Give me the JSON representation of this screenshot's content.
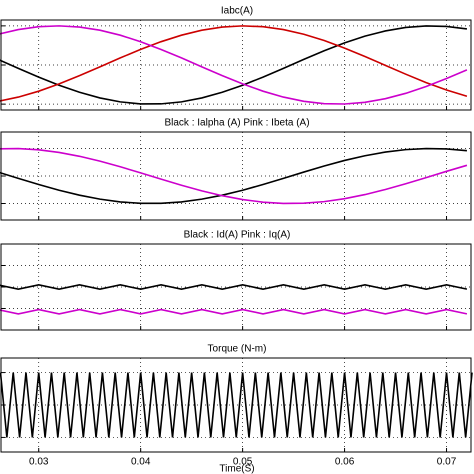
{
  "chart_data": [
    {
      "type": "line",
      "title": "Iabc(A)",
      "x": [
        0.026,
        0.028,
        0.03,
        0.032,
        0.034,
        0.036,
        0.038,
        0.04,
        0.042,
        0.044,
        0.046,
        0.048,
        0.05,
        0.052,
        0.054,
        0.056,
        0.058,
        0.06,
        0.062,
        0.064,
        0.066,
        0.068,
        0.07,
        0.072
      ],
      "series": [
        {
          "color": "#000000",
          "values": [
            0.143,
            -0.085,
            -0.309,
            -0.517,
            -0.697,
            -0.841,
            -0.942,
            -0.994,
            -0.993,
            -0.942,
            -0.841,
            -0.697,
            -0.517,
            -0.309,
            -0.085,
            0.143,
            0.363,
            0.565,
            0.737,
            0.871,
            0.959,
            0.998,
            0.985,
            0.921
          ]
        },
        {
          "color": "#cc0000",
          "values": [
            -0.928,
            -0.82,
            -0.669,
            -0.483,
            -0.272,
            -0.047,
            0.181,
            0.399,
            0.596,
            0.762,
            0.889,
            0.969,
            1.0,
            0.978,
            0.906,
            0.786,
            0.625,
            0.432,
            0.216,
            -0.01,
            -0.235,
            -0.45,
            -0.64,
            -0.798
          ]
        },
        {
          "color": "#cc00cc",
          "values": [
            0.786,
            0.906,
            0.978,
            1.0,
            0.969,
            0.889,
            0.762,
            0.595,
            0.397,
            0.181,
            -0.047,
            -0.272,
            -0.483,
            -0.669,
            -0.82,
            -0.928,
            -0.988,
            -0.997,
            -0.954,
            -0.861,
            -0.724,
            -0.549,
            -0.345,
            -0.124
          ]
        }
      ],
      "xlim": [
        0.0263,
        0.0724
      ],
      "ylim": [
        -1.15,
        1.15
      ],
      "yticks": [
        -1,
        0,
        1
      ],
      "grid": true
    },
    {
      "type": "line",
      "title": "Black : Ialpha (A)  Pink : Ibeta (A)",
      "x": [
        0.026,
        0.028,
        0.03,
        0.032,
        0.034,
        0.036,
        0.038,
        0.04,
        0.042,
        0.044,
        0.046,
        0.048,
        0.05,
        0.052,
        0.054,
        0.056,
        0.058,
        0.06,
        0.062,
        0.064,
        0.066,
        0.068,
        0.07,
        0.072
      ],
      "series": [
        {
          "color": "#000000",
          "values": [
            0.143,
            -0.085,
            -0.309,
            -0.517,
            -0.697,
            -0.841,
            -0.942,
            -0.994,
            -0.993,
            -0.942,
            -0.841,
            -0.697,
            -0.517,
            -0.309,
            -0.085,
            0.143,
            0.363,
            0.565,
            0.737,
            0.871,
            0.959,
            0.998,
            0.985,
            0.921
          ]
        },
        {
          "color": "#cc00cc",
          "values": [
            0.99,
            0.996,
            0.951,
            0.856,
            0.717,
            0.54,
            0.335,
            0.113,
            -0.115,
            -0.335,
            -0.54,
            -0.717,
            -0.856,
            -0.951,
            -0.996,
            -0.99,
            -0.932,
            -0.825,
            -0.676,
            -0.491,
            -0.282,
            -0.058,
            0.17,
            0.389
          ]
        }
      ],
      "xlim": [
        0.0263,
        0.0724
      ],
      "ylim": [
        -1.6,
        1.6
      ],
      "yticks": [
        -1,
        0,
        1
      ],
      "grid": true
    },
    {
      "type": "line",
      "title": "Black : Id(A) Pink : Iq(A)",
      "x": [
        0.026,
        0.028,
        0.03,
        0.032,
        0.034,
        0.036,
        0.038,
        0.04,
        0.042,
        0.044,
        0.046,
        0.048,
        0.05,
        0.052,
        0.054,
        0.056,
        0.058,
        0.06,
        0.062,
        0.064,
        0.066,
        0.068,
        0.07,
        0.072
      ],
      "series": [
        {
          "color": "#000000",
          "values": [
            0.1,
            -0.1,
            0.1,
            -0.1,
            0.1,
            -0.1,
            0.1,
            -0.1,
            0.1,
            -0.1,
            0.1,
            -0.1,
            0.1,
            -0.1,
            0.1,
            -0.1,
            0.1,
            -0.1,
            0.1,
            -0.1,
            0.1,
            -0.1,
            0.1,
            -0.1
          ]
        },
        {
          "color": "#cc00cc",
          "values": [
            -1.05,
            -1.25,
            -1.05,
            -1.25,
            -1.05,
            -1.25,
            -1.05,
            -1.25,
            -1.05,
            -1.25,
            -1.05,
            -1.25,
            -1.05,
            -1.25,
            -1.05,
            -1.25,
            -1.05,
            -1.25,
            -1.05,
            -1.25,
            -1.05,
            -1.25,
            -1.05,
            -1.25
          ]
        }
      ],
      "xlim": [
        0.0263,
        0.0724
      ],
      "ylim": [
        -2,
        2
      ],
      "yticks": [
        -1,
        0,
        1
      ],
      "grid": true
    },
    {
      "type": "line",
      "title": "Torque (N-m)",
      "xlabel": "Time(S)",
      "x": [
        0.02625,
        0.026875,
        0.0275,
        0.028125,
        0.02875,
        0.029375,
        0.03,
        0.030625,
        0.03125,
        0.031875,
        0.0325,
        0.033125,
        0.03375,
        0.034375,
        0.035,
        0.035625,
        0.03625,
        0.036875,
        0.0375,
        0.038125,
        0.03875,
        0.039375,
        0.04,
        0.040625,
        0.04125,
        0.041875,
        0.0425,
        0.043125,
        0.04375,
        0.044375,
        0.045,
        0.045625,
        0.04625,
        0.046875,
        0.0475,
        0.048125,
        0.04875,
        0.049375,
        0.05,
        0.050625,
        0.05125,
        0.051875,
        0.0525,
        0.053125,
        0.05375,
        0.054375,
        0.055,
        0.055625,
        0.05625,
        0.056875,
        0.0575,
        0.058125,
        0.05875,
        0.059375,
        0.06,
        0.060625,
        0.06125,
        0.061875,
        0.0625,
        0.063125,
        0.06375,
        0.064375,
        0.065,
        0.065625,
        0.06625,
        0.066875,
        0.0675,
        0.068125,
        0.06875,
        0.069375,
        0.07,
        0.070625,
        0.07125,
        0.071875,
        0.0725
      ],
      "series": [
        {
          "color": "#000000",
          "values": [
            1,
            -1,
            1,
            -1,
            1,
            -1,
            1,
            -1,
            1,
            -1,
            1,
            -1,
            1,
            -1,
            1,
            -1,
            1,
            -1,
            1,
            -1,
            1,
            -1,
            1,
            -1,
            1,
            -1,
            1,
            -1,
            1,
            -1,
            1,
            -1,
            1,
            -1,
            1,
            -1,
            1,
            -1,
            1,
            -1,
            1,
            -1,
            1,
            -1,
            1,
            -1,
            1,
            -1,
            1,
            -1,
            1,
            -1,
            1,
            -1,
            1,
            -1,
            1,
            -1,
            1,
            -1,
            1,
            -1,
            1,
            -1,
            1,
            -1,
            1,
            -1,
            1,
            -1,
            1,
            -1,
            1,
            -1,
            1
          ]
        }
      ],
      "xlim": [
        0.0263,
        0.0724
      ],
      "ylim": [
        -1.45,
        1.45
      ],
      "yticks": [
        -1,
        0,
        1
      ],
      "xticks": [
        0.03,
        0.04,
        0.05,
        0.06,
        0.07
      ],
      "grid": true
    }
  ]
}
